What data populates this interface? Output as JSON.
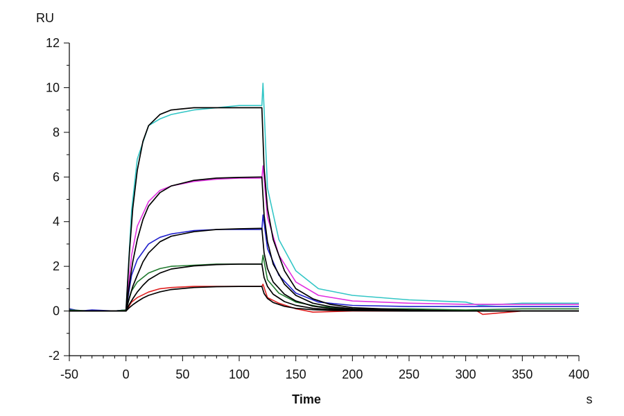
{
  "chart_data": {
    "type": "line",
    "title": "",
    "xlabel": "Time",
    "xunit": "s",
    "ylabel": "RU",
    "xlim": [
      -50,
      400
    ],
    "ylim": [
      -2,
      12
    ],
    "xticks": [
      -50,
      0,
      50,
      100,
      150,
      200,
      250,
      300,
      350,
      400
    ],
    "yticks": [
      -2,
      0,
      2,
      4,
      6,
      8,
      10,
      12
    ],
    "grid": false,
    "legend": "none",
    "colors": {
      "cyan": "#33c6c6",
      "magenta": "#e030e0",
      "blue": "#2020cc",
      "green": "#1f7a2e",
      "red": "#e02020",
      "fit": "#000000",
      "axis": "#000000"
    },
    "series": [
      {
        "color": "cyan",
        "x": [
          -50,
          -30,
          -10,
          0,
          5,
          10,
          20,
          30,
          40,
          60,
          80,
          100,
          120,
          121,
          125,
          135,
          150,
          170,
          200,
          250,
          300,
          312,
          350,
          400
        ],
        "y": [
          0.05,
          0.0,
          0.0,
          0.05,
          4.5,
          6.8,
          8.3,
          8.6,
          8.8,
          9.0,
          9.1,
          9.2,
          9.2,
          10.2,
          5.5,
          3.2,
          1.8,
          1.0,
          0.7,
          0.5,
          0.4,
          0.25,
          0.35,
          0.35
        ]
      },
      {
        "color": "magenta",
        "x": [
          -50,
          -30,
          -10,
          0,
          5,
          10,
          20,
          30,
          40,
          60,
          80,
          100,
          120,
          121,
          125,
          135,
          150,
          170,
          200,
          250,
          300,
          350,
          400
        ],
        "y": [
          0.05,
          0.0,
          0.0,
          0.05,
          2.5,
          3.8,
          4.9,
          5.4,
          5.6,
          5.8,
          5.9,
          5.95,
          5.95,
          6.5,
          4.2,
          2.5,
          1.3,
          0.7,
          0.45,
          0.35,
          0.3,
          0.3,
          0.3
        ]
      },
      {
        "color": "blue",
        "x": [
          -50,
          -40,
          -30,
          -10,
          0,
          5,
          10,
          20,
          30,
          40,
          60,
          80,
          100,
          120,
          121,
          125,
          135,
          150,
          170,
          200,
          250,
          300,
          350,
          400
        ],
        "y": [
          0.1,
          0.0,
          0.05,
          0.0,
          0.05,
          1.6,
          2.3,
          3.0,
          3.3,
          3.45,
          3.6,
          3.65,
          3.65,
          3.65,
          4.3,
          2.8,
          1.6,
          0.8,
          0.4,
          0.25,
          0.2,
          0.2,
          0.2,
          0.2
        ]
      },
      {
        "color": "green",
        "x": [
          -50,
          -30,
          -10,
          0,
          5,
          10,
          20,
          30,
          40,
          60,
          80,
          100,
          120,
          121,
          125,
          135,
          150,
          170,
          200,
          250,
          300,
          350,
          400
        ],
        "y": [
          0.05,
          0.0,
          0.0,
          0.05,
          0.9,
          1.3,
          1.7,
          1.9,
          2.0,
          2.05,
          2.1,
          2.1,
          2.1,
          2.5,
          1.4,
          0.8,
          0.4,
          0.2,
          0.1,
          0.1,
          0.05,
          0.1,
          0.1
        ]
      },
      {
        "color": "red",
        "x": [
          -50,
          -30,
          -10,
          0,
          5,
          10,
          20,
          30,
          40,
          60,
          80,
          100,
          120,
          121,
          125,
          135,
          150,
          165,
          200,
          250,
          310,
          315,
          350,
          400
        ],
        "y": [
          0.0,
          0.0,
          0.0,
          0.0,
          0.4,
          0.6,
          0.85,
          1.0,
          1.05,
          1.1,
          1.1,
          1.1,
          1.1,
          1.2,
          0.6,
          0.35,
          0.1,
          -0.05,
          0.0,
          0.0,
          0.0,
          -0.15,
          0.0,
          0.0
        ]
      }
    ],
    "fits": [
      {
        "color": "fit",
        "x": [
          -50,
          0,
          3,
          6,
          10,
          15,
          20,
          30,
          40,
          60,
          80,
          100,
          119,
          120,
          122,
          125,
          130,
          140,
          150,
          165,
          180,
          200,
          250,
          300,
          350,
          400
        ],
        "y": [
          0.0,
          0.0,
          2.6,
          4.6,
          6.3,
          7.6,
          8.3,
          8.8,
          9.0,
          9.1,
          9.1,
          9.1,
          9.1,
          9.1,
          6.4,
          4.6,
          3.2,
          1.8,
          1.0,
          0.55,
          0.3,
          0.15,
          0.05,
          0.0,
          0.0,
          0.0
        ]
      },
      {
        "color": "fit",
        "x": [
          -50,
          0,
          3,
          6,
          10,
          15,
          20,
          30,
          40,
          60,
          80,
          100,
          119,
          120,
          122,
          125,
          130,
          140,
          150,
          165,
          180,
          200,
          250,
          300,
          350,
          400
        ],
        "y": [
          0.0,
          0.0,
          1.2,
          2.2,
          3.2,
          4.1,
          4.7,
          5.3,
          5.6,
          5.85,
          5.95,
          5.98,
          6.0,
          6.0,
          4.3,
          3.1,
          2.1,
          1.2,
          0.7,
          0.35,
          0.2,
          0.1,
          0.03,
          0.0,
          0.0,
          0.0
        ]
      },
      {
        "color": "fit",
        "x": [
          -50,
          0,
          3,
          6,
          10,
          15,
          20,
          30,
          40,
          60,
          80,
          100,
          119,
          120,
          122,
          125,
          130,
          140,
          150,
          165,
          180,
          200,
          250,
          300,
          350,
          400
        ],
        "y": [
          0.0,
          0.0,
          0.6,
          1.1,
          1.6,
          2.2,
          2.6,
          3.1,
          3.35,
          3.55,
          3.65,
          3.68,
          3.7,
          3.7,
          2.6,
          1.9,
          1.3,
          0.75,
          0.45,
          0.22,
          0.12,
          0.06,
          0.02,
          0.0,
          0.0,
          0.0
        ]
      },
      {
        "color": "fit",
        "x": [
          -50,
          0,
          3,
          6,
          10,
          15,
          20,
          30,
          40,
          60,
          80,
          100,
          119,
          120,
          122,
          125,
          130,
          140,
          150,
          165,
          180,
          200,
          250,
          300,
          350,
          400
        ],
        "y": [
          0.0,
          0.0,
          0.3,
          0.55,
          0.85,
          1.15,
          1.4,
          1.7,
          1.88,
          2.02,
          2.08,
          2.1,
          2.1,
          2.1,
          1.5,
          1.1,
          0.75,
          0.42,
          0.25,
          0.12,
          0.07,
          0.03,
          0.01,
          0.0,
          0.0,
          0.0
        ]
      },
      {
        "color": "fit",
        "x": [
          -50,
          0,
          3,
          6,
          10,
          15,
          20,
          30,
          40,
          60,
          80,
          100,
          119,
          120,
          122,
          125,
          130,
          140,
          150,
          165,
          180,
          200,
          250,
          300,
          350,
          400
        ],
        "y": [
          0.0,
          0.0,
          0.15,
          0.28,
          0.42,
          0.58,
          0.7,
          0.86,
          0.96,
          1.05,
          1.09,
          1.1,
          1.1,
          1.1,
          0.78,
          0.56,
          0.38,
          0.21,
          0.12,
          0.06,
          0.03,
          0.01,
          0.0,
          0.0,
          0.0,
          0.0
        ]
      }
    ]
  }
}
